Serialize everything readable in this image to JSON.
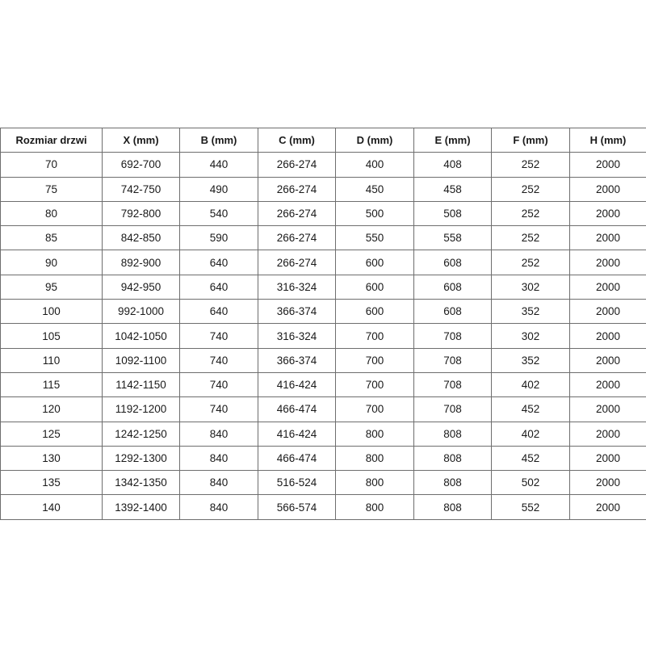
{
  "table": {
    "headers": [
      "Rozmiar drzwi",
      "X (mm)",
      "B (mm)",
      "C (mm)",
      "D (mm)",
      "E (mm)",
      "F (mm)",
      "H (mm)"
    ],
    "rows": [
      [
        "70",
        "692-700",
        "440",
        "266-274",
        "400",
        "408",
        "252",
        "2000"
      ],
      [
        "75",
        "742-750",
        "490",
        "266-274",
        "450",
        "458",
        "252",
        "2000"
      ],
      [
        "80",
        "792-800",
        "540",
        "266-274",
        "500",
        "508",
        "252",
        "2000"
      ],
      [
        "85",
        "842-850",
        "590",
        "266-274",
        "550",
        "558",
        "252",
        "2000"
      ],
      [
        "90",
        "892-900",
        "640",
        "266-274",
        "600",
        "608",
        "252",
        "2000"
      ],
      [
        "95",
        "942-950",
        "640",
        "316-324",
        "600",
        "608",
        "302",
        "2000"
      ],
      [
        "100",
        "992-1000",
        "640",
        "366-374",
        "600",
        "608",
        "352",
        "2000"
      ],
      [
        "105",
        "1042-1050",
        "740",
        "316-324",
        "700",
        "708",
        "302",
        "2000"
      ],
      [
        "110",
        "1092-1100",
        "740",
        "366-374",
        "700",
        "708",
        "352",
        "2000"
      ],
      [
        "115",
        "1142-1150",
        "740",
        "416-424",
        "700",
        "708",
        "402",
        "2000"
      ],
      [
        "120",
        "1192-1200",
        "740",
        "466-474",
        "700",
        "708",
        "452",
        "2000"
      ],
      [
        "125",
        "1242-1250",
        "840",
        "416-424",
        "800",
        "808",
        "402",
        "2000"
      ],
      [
        "130",
        "1292-1300",
        "840",
        "466-474",
        "800",
        "808",
        "452",
        "2000"
      ],
      [
        "135",
        "1342-1350",
        "840",
        "516-524",
        "800",
        "808",
        "502",
        "2000"
      ],
      [
        "140",
        "1392-1400",
        "840",
        "566-574",
        "800",
        "808",
        "552",
        "2000"
      ]
    ]
  }
}
